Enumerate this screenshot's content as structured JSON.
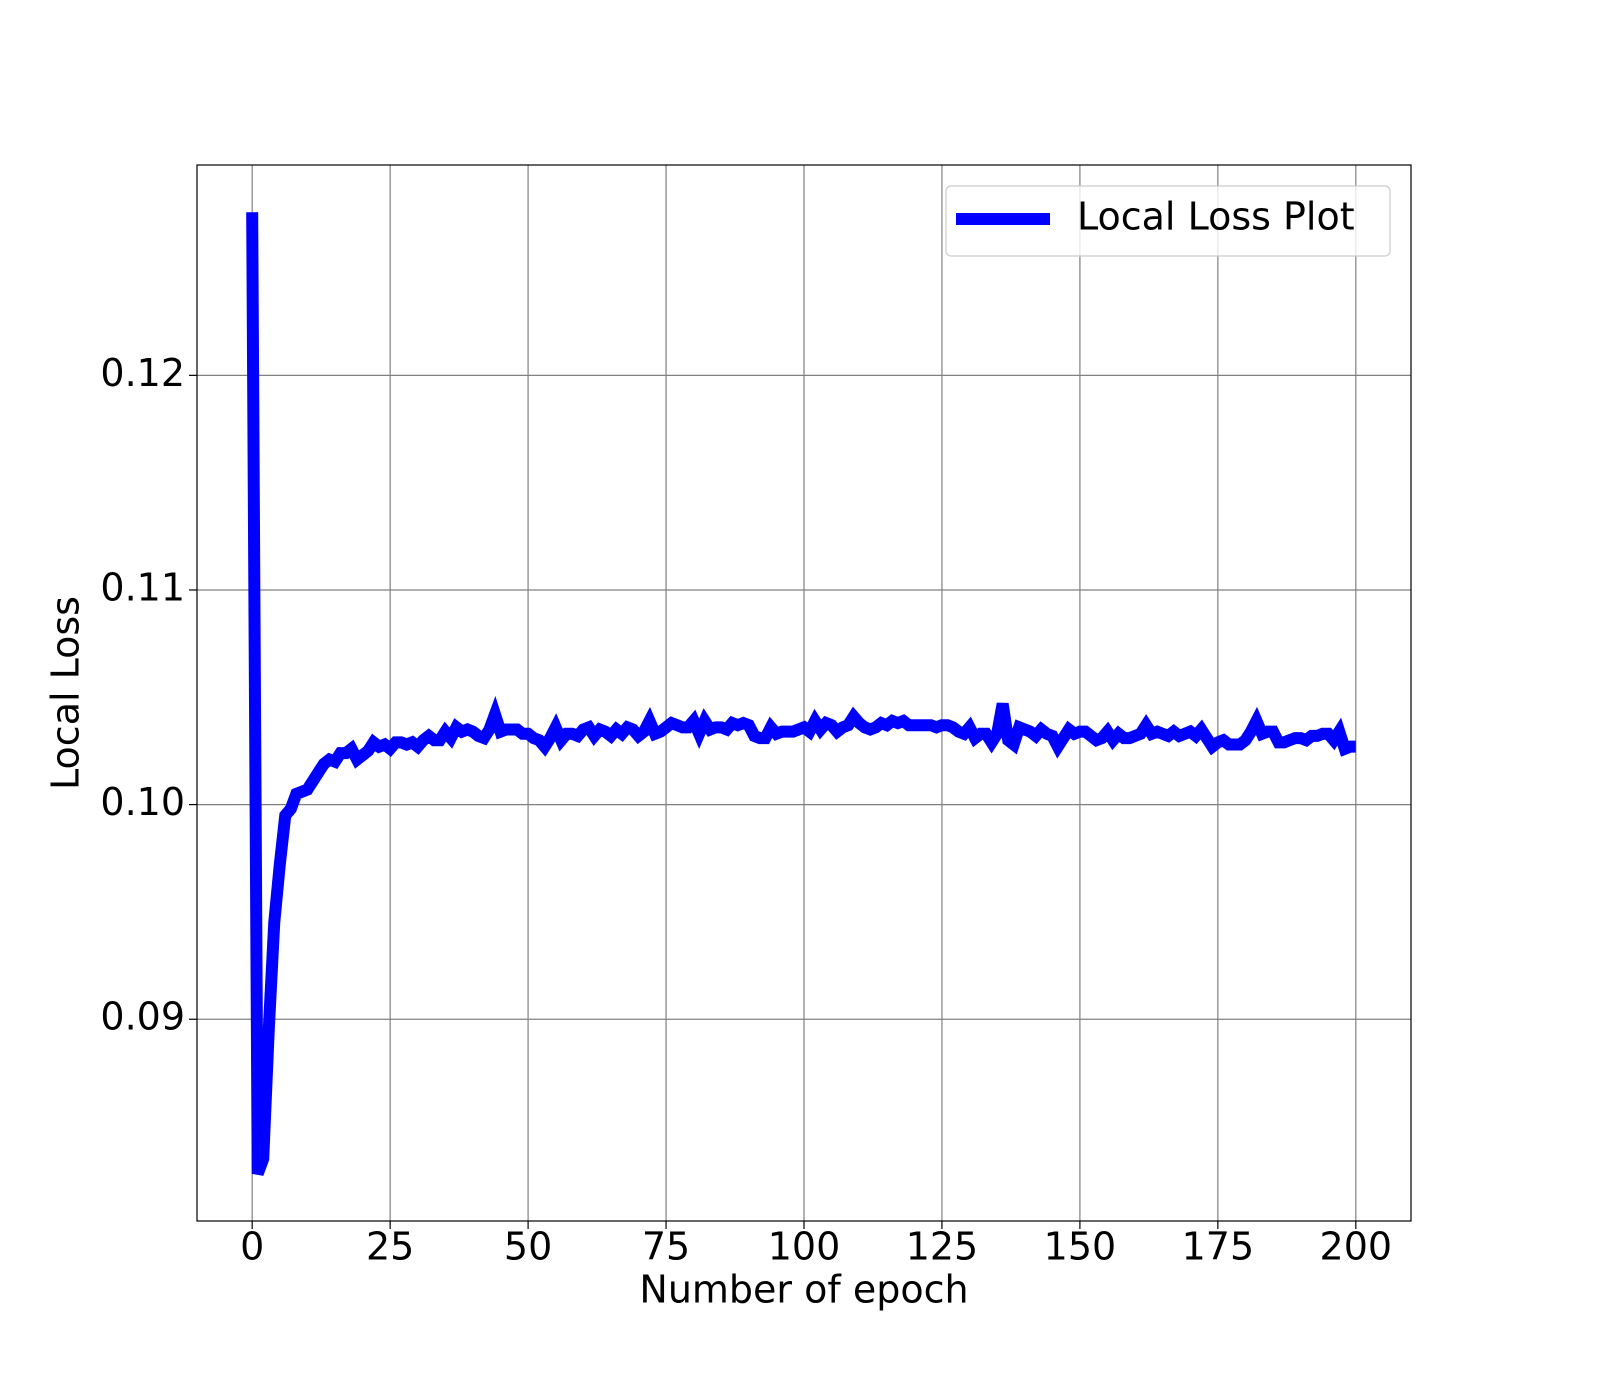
{
  "chart_data": {
    "type": "line",
    "x_label": "Number of epoch",
    "y_label": "Local Loss",
    "x": [
      0,
      1,
      2,
      3,
      4,
      5,
      6,
      7,
      8,
      9,
      10,
      11,
      12,
      13,
      14,
      15,
      16,
      17,
      18,
      19,
      20,
      21,
      22,
      23,
      24,
      25,
      26,
      27,
      28,
      29,
      30,
      31,
      32,
      33,
      34,
      35,
      36,
      37,
      38,
      39,
      40,
      41,
      42,
      43,
      44,
      45,
      46,
      47,
      48,
      49,
      50,
      51,
      52,
      53,
      54,
      55,
      56,
      57,
      58,
      59,
      60,
      61,
      62,
      63,
      64,
      65,
      66,
      67,
      68,
      69,
      70,
      71,
      72,
      73,
      74,
      75,
      76,
      77,
      78,
      79,
      80,
      81,
      82,
      83,
      84,
      85,
      86,
      87,
      88,
      89,
      90,
      91,
      92,
      93,
      94,
      95,
      96,
      97,
      98,
      99,
      100,
      101,
      102,
      103,
      104,
      105,
      106,
      107,
      108,
      109,
      110,
      111,
      112,
      113,
      114,
      115,
      116,
      117,
      118,
      119,
      120,
      121,
      122,
      123,
      124,
      125,
      126,
      127,
      128,
      129,
      130,
      131,
      132,
      133,
      134,
      135,
      136,
      137,
      138,
      139,
      140,
      141,
      142,
      143,
      144,
      145,
      146,
      147,
      148,
      149,
      150,
      151,
      152,
      153,
      154,
      155,
      156,
      157,
      158,
      159,
      160,
      161,
      162,
      163,
      164,
      165,
      166,
      167,
      168,
      169,
      170,
      171,
      172,
      173,
      174,
      175,
      176,
      177,
      178,
      179,
      180,
      181,
      182,
      183,
      184,
      185,
      186,
      187,
      188,
      189,
      190,
      191,
      192,
      193,
      194,
      195,
      196,
      197,
      198,
      199,
      200
    ],
    "series": [
      {
        "name": "Local Loss Plot",
        "color": "#0000ff",
        "values": [
          0.1276,
          0.0828,
          0.0835,
          0.0895,
          0.0945,
          0.0972,
          0.0995,
          0.0998,
          0.1005,
          0.1006,
          0.1007,
          0.1011,
          0.1015,
          0.1019,
          0.1021,
          0.102,
          0.1024,
          0.1024,
          0.1026,
          0.1021,
          0.1023,
          0.1025,
          0.1029,
          0.1027,
          0.1028,
          0.1026,
          0.1029,
          0.1029,
          0.1028,
          0.1029,
          0.1027,
          0.103,
          0.1032,
          0.103,
          0.103,
          0.1034,
          0.1031,
          0.1036,
          0.1034,
          0.1035,
          0.1034,
          0.1032,
          0.1031,
          0.1035,
          0.1042,
          0.1034,
          0.1035,
          0.1035,
          0.1035,
          0.1033,
          0.1033,
          0.1031,
          0.103,
          0.1027,
          0.1031,
          0.1036,
          0.103,
          0.1033,
          0.1033,
          0.1032,
          0.1035,
          0.1036,
          0.1032,
          0.1035,
          0.1034,
          0.1032,
          0.1035,
          0.1033,
          0.1036,
          0.1035,
          0.1032,
          0.1034,
          0.1039,
          0.1033,
          0.1034,
          0.1036,
          0.1038,
          0.1037,
          0.1036,
          0.1036,
          0.1039,
          0.1033,
          0.1039,
          0.1035,
          0.1036,
          0.1036,
          0.1035,
          0.1038,
          0.1037,
          0.1038,
          0.1037,
          0.1032,
          0.1031,
          0.1031,
          0.1036,
          0.1033,
          0.1034,
          0.1034,
          0.1034,
          0.1035,
          0.1036,
          0.1034,
          0.1039,
          0.1035,
          0.1038,
          0.1037,
          0.1034,
          0.1036,
          0.1037,
          0.1041,
          0.1038,
          0.1036,
          0.1035,
          0.1036,
          0.1038,
          0.1037,
          0.1039,
          0.1038,
          0.1039,
          0.1037,
          0.1037,
          0.1037,
          0.1037,
          0.1037,
          0.1036,
          0.1037,
          0.1037,
          0.1036,
          0.1034,
          0.1033,
          0.1036,
          0.1031,
          0.1033,
          0.1033,
          0.1029,
          0.1033,
          0.1047,
          0.103,
          0.1028,
          0.1036,
          0.1035,
          0.1034,
          0.1032,
          0.1035,
          0.1033,
          0.1032,
          0.1027,
          0.1031,
          0.1035,
          0.1033,
          0.1034,
          0.1034,
          0.1032,
          0.103,
          0.1031,
          0.1034,
          0.103,
          0.1033,
          0.1031,
          0.1031,
          0.1032,
          0.1033,
          0.1037,
          0.1033,
          0.1034,
          0.1033,
          0.1032,
          0.1034,
          0.1032,
          0.1033,
          0.1034,
          0.1032,
          0.1035,
          0.1031,
          0.1027,
          0.1029,
          0.103,
          0.1028,
          0.1028,
          0.1028,
          0.103,
          0.1034,
          0.1039,
          0.1033,
          0.1034,
          0.1034,
          0.1029,
          0.1029,
          0.103,
          0.1031,
          0.1031,
          0.103,
          0.1032,
          0.1032,
          0.1033,
          0.1033,
          0.103,
          0.1034,
          0.1026,
          0.1027,
          0.1027
        ]
      }
    ],
    "xlim": [
      -10,
      210
    ],
    "ylim": [
      0.0806,
      0.1298
    ],
    "xticks": [
      0,
      25,
      50,
      75,
      100,
      125,
      150,
      175,
      200
    ],
    "yticks": [
      0.09,
      {
        "value": 0.1,
        "label": "0.10"
      },
      0.11,
      0.12
    ],
    "grid": true,
    "legend": "upper right"
  }
}
